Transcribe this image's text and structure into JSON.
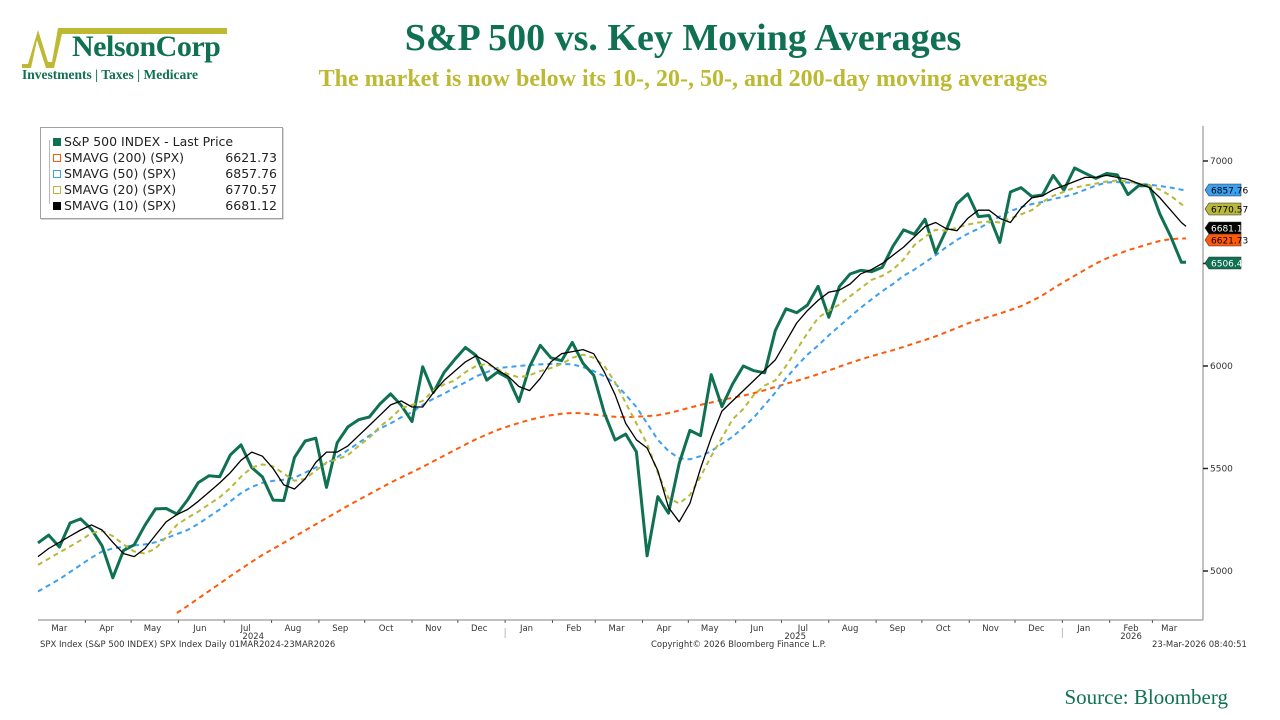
{
  "header": {
    "logo_name": "NelsonCorp",
    "logo_tagline": "Investments | Taxes | Medicare",
    "title": "S&P 500 vs. Key Moving Averages",
    "subtitle": "The market is now below its 10-, 20-, 50-, and 200-day moving averages"
  },
  "footer": {
    "left": "SPX Index (S&P 500 INDEX) SPX Index Daily 01MAR2024-23MAR2026",
    "center": "Copyright© 2026 Bloomberg Finance L.P.",
    "right": "23-Mar-2026 08:40:51",
    "source": "Source: Bloomberg"
  },
  "colors": {
    "brand_green": "#0f7151",
    "brand_olive": "#bdb933",
    "price": "#0f7151",
    "sma200": "#ff5a0a",
    "sma50": "#3aa0f0",
    "sma20": "#b8b83a",
    "sma10": "#000000"
  },
  "chart_data": {
    "type": "line",
    "title": "S&P 500 vs. Key Moving Averages",
    "xlabel": "",
    "ylabel": "",
    "x_range": [
      "2024-03-01",
      "2026-03-23"
    ],
    "ylim": [
      4780,
      7200
    ],
    "y_ticks": [
      5000,
      5500,
      6000,
      6500,
      7000
    ],
    "y_tick_labels": [
      "5000",
      "5500",
      "6000",
      "",
      "7000"
    ],
    "x_ticks": [
      {
        "label": "Mar",
        "date": "2024-03-15"
      },
      {
        "label": "Apr",
        "date": "2024-04-15"
      },
      {
        "label": "May",
        "date": "2024-05-15"
      },
      {
        "label": "Jun",
        "date": "2024-06-15"
      },
      {
        "label": "Jul",
        "date": "2024-07-15"
      },
      {
        "label": "Aug",
        "date": "2024-08-15"
      },
      {
        "label": "Sep",
        "date": "2024-09-15"
      },
      {
        "label": "Oct",
        "date": "2024-10-15"
      },
      {
        "label": "Nov",
        "date": "2024-11-15"
      },
      {
        "label": "Dec",
        "date": "2024-12-15"
      },
      {
        "label": "Jan",
        "date": "2025-01-15"
      },
      {
        "label": "Feb",
        "date": "2025-02-15"
      },
      {
        "label": "Mar",
        "date": "2025-03-15"
      },
      {
        "label": "Apr",
        "date": "2025-04-15"
      },
      {
        "label": "May",
        "date": "2025-05-15"
      },
      {
        "label": "Jun",
        "date": "2025-06-15"
      },
      {
        "label": "Jul",
        "date": "2025-07-15"
      },
      {
        "label": "Aug",
        "date": "2025-08-15"
      },
      {
        "label": "Sep",
        "date": "2025-09-15"
      },
      {
        "label": "Oct",
        "date": "2025-10-15"
      },
      {
        "label": "Nov",
        "date": "2025-11-15"
      },
      {
        "label": "Dec",
        "date": "2025-12-15"
      },
      {
        "label": "Jan",
        "date": "2026-01-15"
      },
      {
        "label": "Feb",
        "date": "2026-02-15"
      },
      {
        "label": "Mar",
        "date": "2026-03-12"
      }
    ],
    "year_labels": [
      {
        "label": "2024",
        "date": "2024-07-20"
      },
      {
        "label": "2025",
        "date": "2025-07-10"
      },
      {
        "label": "2026",
        "date": "2026-02-15"
      }
    ],
    "legend_position": "top-left",
    "legend": [
      {
        "name": "S&P 500 INDEX - Last Price",
        "value": ""
      },
      {
        "name": "SMAVG (200) (SPX)",
        "value": "6621.73"
      },
      {
        "name": "SMAVG (50) (SPX)",
        "value": "6857.76"
      },
      {
        "name": "SMAVG (20) (SPX)",
        "value": "6770.57"
      },
      {
        "name": "SMAVG (10) (SPX)",
        "value": "6681.12"
      }
    ],
    "last_value_labels": [
      {
        "series": "SMAVG (50) (SPX)",
        "value": "6857.76"
      },
      {
        "series": "SMAVG (20) (SPX)",
        "value": "6770.57"
      },
      {
        "series": "SMAVG (10) (SPX)",
        "value": "6681.12"
      },
      {
        "series": "SMAVG (200) (SPX)",
        "value": "6621.73"
      },
      {
        "series": "S&P 500 INDEX - Last Price",
        "value": "6506.48"
      }
    ],
    "x": [
      "2024-03-01",
      "2024-03-08",
      "2024-03-15",
      "2024-03-22",
      "2024-03-29",
      "2024-04-05",
      "2024-04-12",
      "2024-04-19",
      "2024-04-26",
      "2024-05-03",
      "2024-05-10",
      "2024-05-17",
      "2024-05-24",
      "2024-05-31",
      "2024-06-07",
      "2024-06-14",
      "2024-06-21",
      "2024-06-28",
      "2024-07-05",
      "2024-07-12",
      "2024-07-19",
      "2024-07-26",
      "2024-08-02",
      "2024-08-09",
      "2024-08-16",
      "2024-08-23",
      "2024-08-30",
      "2024-09-06",
      "2024-09-13",
      "2024-09-20",
      "2024-09-27",
      "2024-10-04",
      "2024-10-11",
      "2024-10-18",
      "2024-10-25",
      "2024-11-01",
      "2024-11-08",
      "2024-11-15",
      "2024-11-22",
      "2024-11-29",
      "2024-12-06",
      "2024-12-13",
      "2024-12-20",
      "2024-12-27",
      "2025-01-03",
      "2025-01-10",
      "2025-01-17",
      "2025-01-24",
      "2025-01-31",
      "2025-02-07",
      "2025-02-14",
      "2025-02-21",
      "2025-02-28",
      "2025-03-07",
      "2025-03-14",
      "2025-03-21",
      "2025-03-28",
      "2025-04-04",
      "2025-04-11",
      "2025-04-18",
      "2025-04-25",
      "2025-05-02",
      "2025-05-09",
      "2025-05-16",
      "2025-05-23",
      "2025-05-30",
      "2025-06-06",
      "2025-06-13",
      "2025-06-20",
      "2025-06-27",
      "2025-07-04",
      "2025-07-11",
      "2025-07-18",
      "2025-07-25",
      "2025-08-01",
      "2025-08-08",
      "2025-08-15",
      "2025-08-22",
      "2025-08-29",
      "2025-09-05",
      "2025-09-12",
      "2025-09-19",
      "2025-09-26",
      "2025-10-03",
      "2025-10-10",
      "2025-10-17",
      "2025-10-24",
      "2025-10-31",
      "2025-11-07",
      "2025-11-14",
      "2025-11-21",
      "2025-11-28",
      "2025-12-05",
      "2025-12-12",
      "2025-12-19",
      "2025-12-26",
      "2026-01-02",
      "2026-01-09",
      "2026-01-16",
      "2026-01-23",
      "2026-01-30",
      "2026-02-06",
      "2026-02-13",
      "2026-02-20",
      "2026-02-27",
      "2026-03-06",
      "2026-03-13",
      "2026-03-20",
      "2026-03-23"
    ],
    "series": [
      {
        "name": "S&P 500 INDEX - Last Price",
        "values": [
          5137,
          5175,
          5117,
          5234,
          5254,
          5204,
          5123,
          4967,
          5100,
          5128,
          5223,
          5303,
          5305,
          5278,
          5347,
          5431,
          5465,
          5460,
          5567,
          5615,
          5505,
          5459,
          5346,
          5344,
          5554,
          5634,
          5648,
          5408,
          5626,
          5703,
          5738,
          5751,
          5815,
          5864,
          5808,
          5729,
          5996,
          5870,
          5969,
          6032,
          6090,
          6051,
          5931,
          5970,
          5942,
          5827,
          5997,
          6101,
          6040,
          6026,
          6115,
          6013,
          5955,
          5770,
          5639,
          5668,
          5581,
          5074,
          5363,
          5282,
          5525,
          5686,
          5660,
          5958,
          5802,
          5912,
          6000,
          5977,
          5967,
          6173,
          6279,
          6260,
          6297,
          6389,
          6238,
          6389,
          6449,
          6467,
          6460,
          6481,
          6584,
          6664,
          6643,
          6716,
          6552,
          6664,
          6792,
          6840,
          6729,
          6734,
          6603,
          6849,
          6870,
          6827,
          6834,
          6930,
          6858,
          6966,
          6940,
          6915,
          6939,
          6932,
          6836,
          6880,
          6879,
          6740,
          6632,
          6506,
          6506
        ]
      },
      {
        "name": "SMAVG (200) (SPX)",
        "values": [
          null,
          null,
          null,
          null,
          null,
          null,
          null,
          null,
          null,
          null,
          null,
          null,
          null,
          4795,
          4830,
          4866,
          4902,
          4938,
          4975,
          5010,
          5045,
          5078,
          5108,
          5138,
          5168,
          5198,
          5228,
          5258,
          5288,
          5318,
          5347,
          5375,
          5403,
          5431,
          5457,
          5482,
          5508,
          5535,
          5563,
          5590,
          5617,
          5643,
          5666,
          5688,
          5706,
          5722,
          5737,
          5750,
          5760,
          5767,
          5771,
          5769,
          5763,
          5757,
          5752,
          5750,
          5753,
          5755,
          5760,
          5770,
          5783,
          5797,
          5810,
          5822,
          5835,
          5845,
          5855,
          5868,
          5882,
          5898,
          5913,
          5928,
          5943,
          5960,
          5978,
          5997,
          6015,
          6032,
          6048,
          6063,
          6077,
          6093,
          6110,
          6127,
          6145,
          6165,
          6186,
          6208,
          6225,
          6240,
          6256,
          6273,
          6292,
          6317,
          6345,
          6378,
          6410,
          6440,
          6470,
          6500,
          6525,
          6545,
          6565,
          6580,
          6596,
          6610,
          6619,
          6622,
          6622
        ]
      },
      {
        "name": "SMAVG (50) (SPX)",
        "values": [
          4900,
          4930,
          4960,
          4995,
          5030,
          5065,
          5095,
          5110,
          5118,
          5125,
          5130,
          5140,
          5160,
          5180,
          5200,
          5230,
          5265,
          5300,
          5340,
          5380,
          5410,
          5430,
          5440,
          5445,
          5455,
          5480,
          5505,
          5525,
          5555,
          5590,
          5625,
          5660,
          5695,
          5720,
          5750,
          5775,
          5810,
          5840,
          5865,
          5895,
          5920,
          5950,
          5970,
          5990,
          5995,
          6000,
          6005,
          6008,
          6010,
          6010,
          6008,
          5995,
          5975,
          5950,
          5915,
          5860,
          5800,
          5720,
          5640,
          5585,
          5550,
          5545,
          5560,
          5585,
          5620,
          5655,
          5700,
          5750,
          5810,
          5870,
          5940,
          6000,
          6055,
          6100,
          6150,
          6195,
          6240,
          6285,
          6325,
          6365,
          6400,
          6440,
          6470,
          6505,
          6540,
          6580,
          6615,
          6645,
          6670,
          6700,
          6730,
          6755,
          6775,
          6790,
          6800,
          6815,
          6825,
          6840,
          6860,
          6880,
          6895,
          6897,
          6895,
          6890,
          6885,
          6878,
          6870,
          6860,
          6858
        ]
      },
      {
        "name": "SMAVG (20) (SPX)",
        "values": [
          5030,
          5060,
          5090,
          5120,
          5150,
          5185,
          5195,
          5170,
          5130,
          5095,
          5085,
          5110,
          5165,
          5225,
          5260,
          5290,
          5325,
          5360,
          5405,
          5460,
          5505,
          5520,
          5510,
          5475,
          5440,
          5450,
          5490,
          5530,
          5545,
          5565,
          5610,
          5650,
          5705,
          5745,
          5795,
          5810,
          5830,
          5880,
          5910,
          5930,
          5970,
          6000,
          6010,
          5985,
          5960,
          5945,
          5955,
          5975,
          5990,
          6010,
          6040,
          6055,
          6040,
          6000,
          5920,
          5820,
          5720,
          5620,
          5480,
          5355,
          5330,
          5370,
          5460,
          5560,
          5650,
          5740,
          5790,
          5860,
          5905,
          5930,
          6000,
          6080,
          6160,
          6235,
          6270,
          6300,
          6340,
          6380,
          6420,
          6440,
          6470,
          6520,
          6590,
          6630,
          6665,
          6660,
          6675,
          6690,
          6700,
          6705,
          6700,
          6720,
          6740,
          6760,
          6800,
          6830,
          6850,
          6870,
          6880,
          6890,
          6900,
          6905,
          6900,
          6890,
          6880,
          6860,
          6830,
          6790,
          6771
        ]
      },
      {
        "name": "SMAVG (10) (SPX)",
        "values": [
          5070,
          5110,
          5140,
          5170,
          5200,
          5225,
          5200,
          5140,
          5085,
          5070,
          5110,
          5175,
          5240,
          5275,
          5300,
          5340,
          5385,
          5430,
          5480,
          5540,
          5580,
          5560,
          5500,
          5420,
          5400,
          5450,
          5530,
          5580,
          5580,
          5610,
          5660,
          5710,
          5760,
          5810,
          5830,
          5800,
          5800,
          5870,
          5930,
          5975,
          6020,
          6050,
          6020,
          5980,
          5950,
          5900,
          5880,
          5940,
          6020,
          6060,
          6070,
          6080,
          6060,
          5970,
          5860,
          5720,
          5640,
          5600,
          5490,
          5310,
          5240,
          5330,
          5500,
          5650,
          5780,
          5830,
          5880,
          5930,
          5980,
          6030,
          6120,
          6210,
          6270,
          6320,
          6360,
          6370,
          6400,
          6450,
          6470,
          6500,
          6540,
          6580,
          6630,
          6680,
          6700,
          6670,
          6660,
          6720,
          6760,
          6760,
          6720,
          6700,
          6770,
          6820,
          6830,
          6860,
          6880,
          6900,
          6920,
          6920,
          6930,
          6920,
          6910,
          6890,
          6870,
          6820,
          6760,
          6700,
          6681
        ]
      }
    ]
  }
}
